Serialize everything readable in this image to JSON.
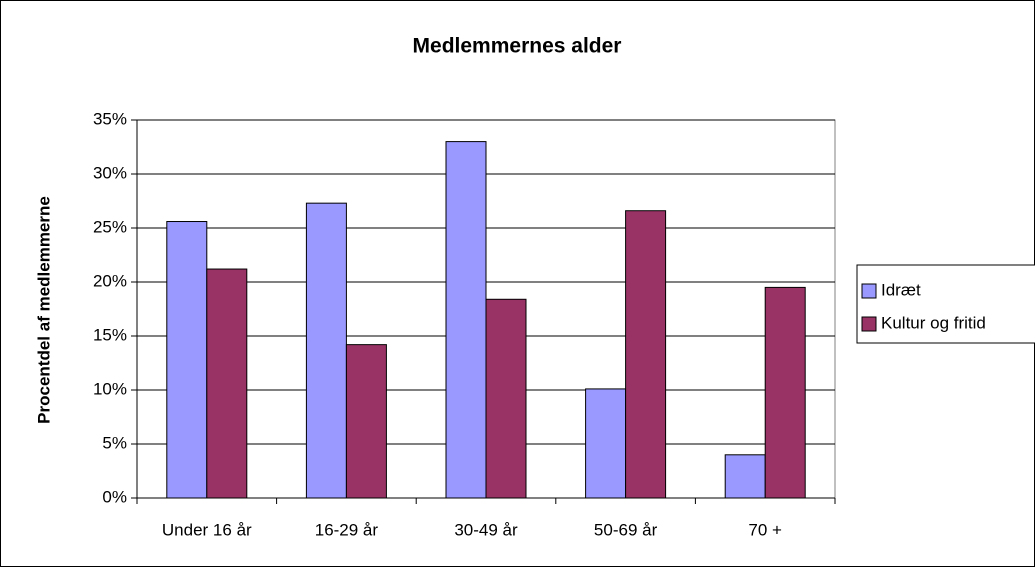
{
  "chart_data": {
    "type": "bar",
    "title": "Medlemmernes alder",
    "y_axis_label": "Procentdel af medlemmerne",
    "categories": [
      "Under 16 år",
      "16-29 år",
      "30-49 år",
      "50-69 år",
      "70 +"
    ],
    "series": [
      {
        "name": "Idræt",
        "color": "#9999ff",
        "values": [
          25.6,
          27.3,
          33.0,
          10.1,
          4.0
        ]
      },
      {
        "name": "Kultur og fritid",
        "color": "#993366",
        "values": [
          21.2,
          14.2,
          18.4,
          26.6,
          19.5
        ]
      }
    ],
    "ylim": [
      0,
      35
    ],
    "yticks": [
      {
        "value": 0,
        "label": "0%"
      },
      {
        "value": 5,
        "label": "5%"
      },
      {
        "value": 10,
        "label": "10%"
      },
      {
        "value": 15,
        "label": "15%"
      },
      {
        "value": 20,
        "label": "20%"
      },
      {
        "value": 25,
        "label": "25%"
      },
      {
        "value": 30,
        "label": "30%"
      },
      {
        "value": 35,
        "label": "35%"
      }
    ],
    "grid": true,
    "legend": "right"
  }
}
